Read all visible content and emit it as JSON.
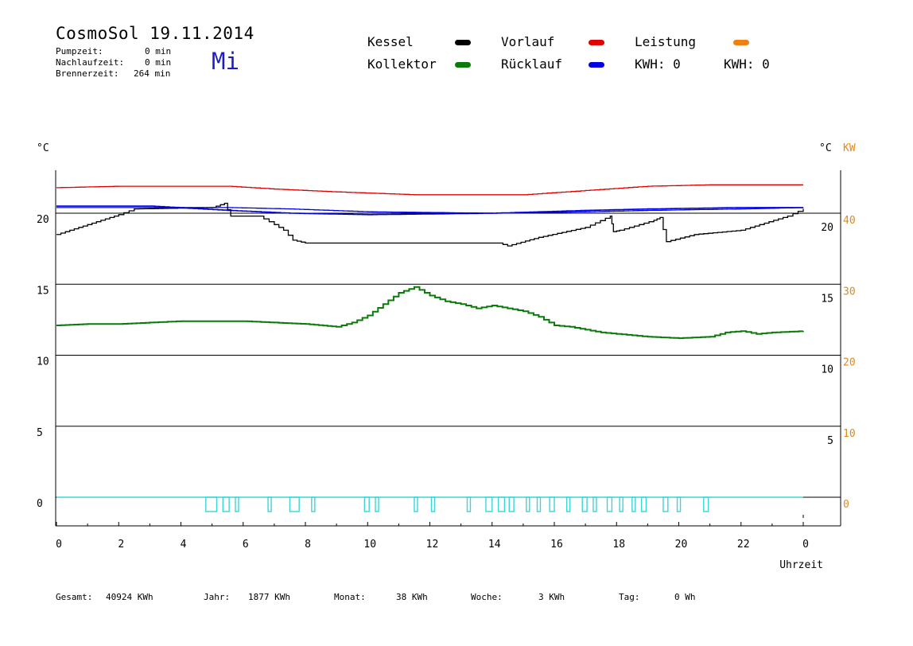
{
  "header": {
    "title": "CosmoSol 19.11.2014",
    "day": "Mi",
    "info": [
      {
        "label": "Pumpzeit:",
        "value": "0 min"
      },
      {
        "label": "Nachlaufzeit:",
        "value": "0 min"
      },
      {
        "label": "Brennerzeit:",
        "value": "264 min"
      }
    ]
  },
  "legend": {
    "kessel": {
      "label": "Kessel",
      "color": "#000000"
    },
    "kollektor": {
      "label": "Kollektor",
      "color": "#0a7a0a"
    },
    "vorlauf": {
      "label": "Vorlauf",
      "color": "#e00000"
    },
    "ruecklauf": {
      "label": "Rücklauf",
      "color": "#0000e0"
    },
    "leistung": {
      "label": "Leistung",
      "color": "#f08010"
    },
    "kwh_orange": {
      "label": "KWH: 0",
      "color": "#e08a1c"
    },
    "kwh_purple": {
      "label": "KWH: 0",
      "color": "#7a2a8a"
    }
  },
  "footer": [
    {
      "label": "Gesamt:",
      "value": "40924 KWh"
    },
    {
      "label": "Jahr:",
      "value": "1877 KWh"
    },
    {
      "label": "Monat:",
      "value": "38 KWh"
    },
    {
      "label": "Woche:",
      "value": "3 KWh"
    },
    {
      "label": "Tag:",
      "value": "0 Wh"
    }
  ],
  "chart_data": {
    "type": "line",
    "xlabel": "Uhrzeit",
    "x_ticks": [
      "0",
      "2",
      "4",
      "6",
      "8",
      "10",
      "12",
      "14",
      "16",
      "18",
      "20",
      "22",
      "0"
    ],
    "xlim": [
      0,
      24
    ],
    "ylabel_left": "°C",
    "ylabel_right": "°C",
    "ylabel_right2": "KW",
    "y_left_ticks": [
      "0",
      "5",
      "10",
      "15",
      "20"
    ],
    "y_right_ticks": [
      "5",
      "10",
      "15",
      "20"
    ],
    "y_kw_ticks": [
      "0",
      "10",
      "20",
      "30",
      "40"
    ],
    "ylim": [
      -2,
      23
    ],
    "grid": "horizontal",
    "series": [
      {
        "name": "Vorlauf",
        "color": "#e00000",
        "x": [
          0,
          2,
          5.5,
          7,
          9,
          11.5,
          15,
          17,
          19,
          21,
          24
        ],
        "y": [
          21.8,
          21.9,
          21.9,
          21.7,
          21.5,
          21.3,
          21.3,
          21.6,
          21.9,
          22.0,
          22.0
        ]
      },
      {
        "name": "Rücklauf",
        "color": "#0000e0",
        "x": [
          0,
          3,
          5.5,
          7.5,
          10,
          14,
          17,
          19,
          22,
          24
        ],
        "y": [
          20.4,
          20.4,
          20.4,
          20.3,
          20.1,
          20.0,
          20.1,
          20.2,
          20.3,
          20.4
        ],
        "y_step": [
          20.5,
          20.5,
          20.2,
          20.0,
          19.9,
          20.0,
          20.2,
          20.3,
          20.4,
          20.4
        ]
      },
      {
        "name": "Kessel",
        "color": "#000000",
        "x": [
          0,
          1,
          2,
          2.5,
          5,
          5.4,
          5.6,
          6.5,
          7.0,
          7.3,
          7.6,
          8.0,
          10,
          14.2,
          14.5,
          15.5,
          17.0,
          17.8,
          17.9,
          18.1,
          19.2,
          19.4,
          19.6,
          20.5,
          22.0,
          23.5,
          24.0
        ],
        "y": [
          18.5,
          19.2,
          19.9,
          20.3,
          20.4,
          20.7,
          19.8,
          19.8,
          19.2,
          18.8,
          18.1,
          17.9,
          17.9,
          17.9,
          17.7,
          18.3,
          19.0,
          19.8,
          18.7,
          18.8,
          19.5,
          19.7,
          18.0,
          18.5,
          18.8,
          19.8,
          20.3
        ]
      },
      {
        "name": "Kollektor",
        "color": "#0a7a0a",
        "x": [
          0,
          1,
          2,
          3,
          4,
          5,
          6,
          7,
          8,
          9,
          9.5,
          10,
          10.5,
          11,
          11.5,
          12,
          12.5,
          13,
          13.5,
          14,
          14.5,
          15,
          15.5,
          16,
          16.5,
          17,
          17.5,
          18,
          18.5,
          19,
          20,
          21,
          21.5,
          22,
          22.5,
          23,
          24
        ],
        "y": [
          12.1,
          12.2,
          12.2,
          12.3,
          12.4,
          12.4,
          12.4,
          12.3,
          12.2,
          12.0,
          12.3,
          12.8,
          13.6,
          14.4,
          14.8,
          14.2,
          13.8,
          13.6,
          13.3,
          13.5,
          13.3,
          13.1,
          12.7,
          12.1,
          12.0,
          11.8,
          11.6,
          11.5,
          11.4,
          11.3,
          11.2,
          11.3,
          11.6,
          11.7,
          11.5,
          11.6,
          11.7
        ]
      },
      {
        "name": "Pumpe",
        "color": "#3ad6d6",
        "x": [
          0,
          24
        ],
        "y": [
          0,
          0
        ]
      }
    ],
    "pump_intervals": [
      [
        4.8,
        5.15
      ],
      [
        5.35,
        5.55
      ],
      [
        5.75,
        5.85
      ],
      [
        6.8,
        6.9
      ],
      [
        7.5,
        7.8
      ],
      [
        8.2,
        8.3
      ],
      [
        9.9,
        10.05
      ],
      [
        10.25,
        10.35
      ],
      [
        11.5,
        11.6
      ],
      [
        12.05,
        12.15
      ],
      [
        13.2,
        13.3
      ],
      [
        13.8,
        14.0
      ],
      [
        14.2,
        14.4
      ],
      [
        14.55,
        14.7
      ],
      [
        15.1,
        15.2
      ],
      [
        15.45,
        15.55
      ],
      [
        15.85,
        16.0
      ],
      [
        16.4,
        16.5
      ],
      [
        16.9,
        17.05
      ],
      [
        17.25,
        17.35
      ],
      [
        17.7,
        17.85
      ],
      [
        18.1,
        18.2
      ],
      [
        18.5,
        18.6
      ],
      [
        18.8,
        18.95
      ],
      [
        19.5,
        19.65
      ],
      [
        19.95,
        20.05
      ],
      [
        20.8,
        20.95
      ]
    ]
  }
}
